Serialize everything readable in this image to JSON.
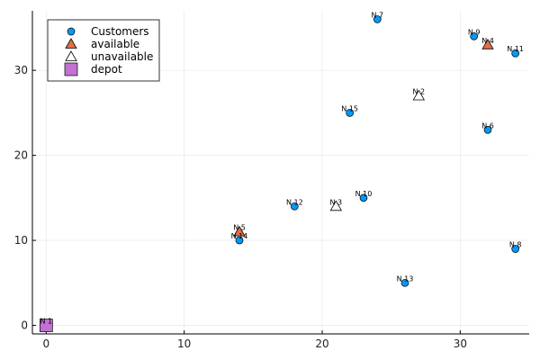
{
  "chart_data": {
    "type": "scatter",
    "title": "",
    "xlabel": "",
    "ylabel": "",
    "xlim": [
      -1,
      35
    ],
    "ylim": [
      -1,
      37
    ],
    "xticks": [
      0,
      10,
      20,
      30
    ],
    "yticks": [
      0,
      10,
      20,
      30
    ],
    "grid": true,
    "legend_position": "top-left",
    "series": [
      {
        "name": "Customers",
        "marker": "circle",
        "color": "#009AFA",
        "points": [
          {
            "x": 24,
            "y": 36,
            "label": "N 7"
          },
          {
            "x": 31,
            "y": 34,
            "label": "N 9"
          },
          {
            "x": 34,
            "y": 32,
            "label": "N 11"
          },
          {
            "x": 22,
            "y": 25,
            "label": "N 15"
          },
          {
            "x": 32,
            "y": 23,
            "label": "N 6"
          },
          {
            "x": 23,
            "y": 15,
            "label": "N 10"
          },
          {
            "x": 18,
            "y": 14,
            "label": "N 12"
          },
          {
            "x": 14,
            "y": 10,
            "label": "N 14"
          },
          {
            "x": 34,
            "y": 9,
            "label": "N 8"
          },
          {
            "x": 26,
            "y": 5,
            "label": "N 13"
          }
        ]
      },
      {
        "name": "available",
        "marker": "triangle",
        "color": "#E26F46",
        "points": [
          {
            "x": 32,
            "y": 33,
            "label": "N 4"
          },
          {
            "x": 14,
            "y": 11,
            "label": "N 5"
          }
        ]
      },
      {
        "name": "unavailable",
        "marker": "triangle-open",
        "color": "#FFFFFF",
        "points": [
          {
            "x": 27,
            "y": 27,
            "label": "N 2"
          },
          {
            "x": 21,
            "y": 14,
            "label": "N 3"
          }
        ]
      },
      {
        "name": "depot",
        "marker": "square",
        "color": "#C271D2",
        "points": [
          {
            "x": 0,
            "y": 0,
            "label": "N 1"
          }
        ]
      }
    ]
  }
}
